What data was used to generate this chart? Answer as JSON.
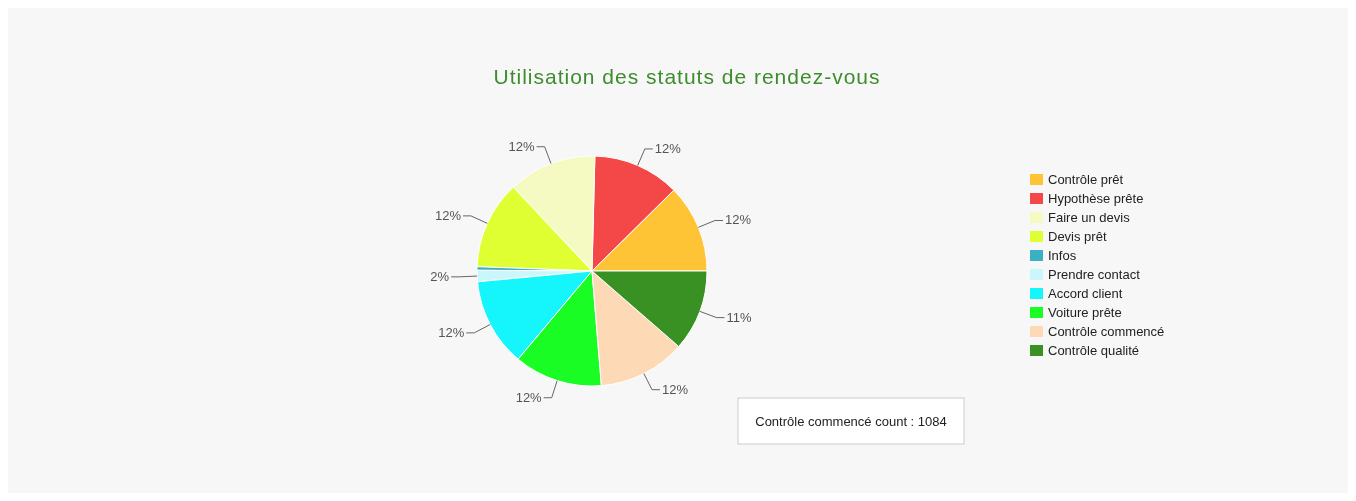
{
  "chart_data": {
    "type": "pie",
    "title": "Utilisation des statuts de rendez-vous",
    "categories": [
      "Contrôle prêt",
      "Hypothèse prête",
      "Faire un devis",
      "Devis prêt",
      "Infos",
      "Prendre contact",
      "Accord client",
      "Voiture prête",
      "Contrôle commencé",
      "Contrôle qualité"
    ],
    "values": [
      12.4,
      12.2,
      12.4,
      12.4,
      0.5,
      1.6,
      12.4,
      12.4,
      12.3,
      11.4
    ],
    "value_labels": [
      "12%",
      "12%",
      "12%",
      "12%",
      null,
      "2%",
      "12%",
      "12%",
      "12%",
      "11%"
    ],
    "colors": [
      "#ffc336",
      "#f44848",
      "#f4fac2",
      "#dfff33",
      "#3ab0c3",
      "#c9f7fb",
      "#14f6fb",
      "#19fc24",
      "#fdd9b5",
      "#399123"
    ],
    "legend": "right",
    "annotations": [
      "Contrôle commencé count : 1084"
    ]
  }
}
